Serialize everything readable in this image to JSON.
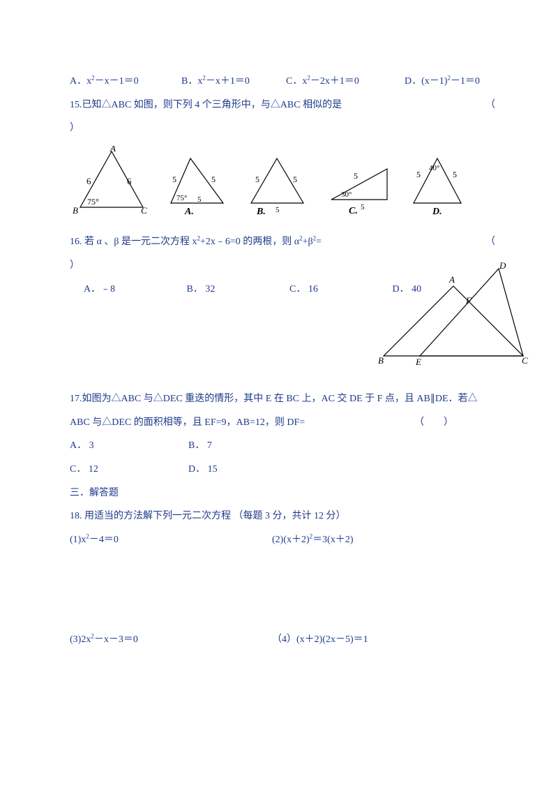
{
  "q14": {
    "optA": "A．x²－x－1＝0",
    "optB": "B．x²－x＋1＝0",
    "optC": "C．x²－2x＋1＝0",
    "optD": "D．(x－1)²－1＝0"
  },
  "q15": {
    "text": "15.已知△ABC 如图，则下列 4 个三角形中，与△ABC 相似的是",
    "paren_open": "（",
    "paren_close": "）",
    "ref": {
      "A": "A",
      "B": "B",
      "C": "C",
      "side_left": "6",
      "side_right": "6",
      "angle": "75°"
    },
    "opts": {
      "A": {
        "label": "A.",
        "s1": "5",
        "s2": "5",
        "s3": "5",
        "angle": "75°"
      },
      "B": {
        "label": "B.",
        "s1": "5",
        "s2": "5",
        "s3": "5"
      },
      "C": {
        "label": "C.",
        "s1": "5",
        "s2": "5",
        "angle": "30°"
      },
      "D": {
        "label": "D.",
        "s1": "5",
        "s2": "5",
        "angle": "40°"
      }
    }
  },
  "q16": {
    "text": "16. 若 α 、β 是一元二次方程 x²+2x﹣6=0 的两根，则 α²+β²=",
    "paren_open": "（",
    "paren_close": "）",
    "optA": "A．﹣8",
    "optB": "B． 32",
    "optC": "C． 16",
    "optD": "D． 40"
  },
  "q17": {
    "line1": "17.如图为△ABC 与△DEC 重迭的情形，其中 E 在 BC 上，AC 交 DE 于 F 点，且 AB∥DE．若△",
    "line2": "ABC 与△DEC 的面积相等，且 EF=9，AB=12，则 DF=",
    "paren": "（　　）",
    "optA": "A． 3",
    "optB": "B． 7",
    "optC": "C． 12",
    "optD": "D． 15",
    "fig": {
      "A": "A",
      "B": "B",
      "C": "C",
      "D": "D",
      "E": "E",
      "F": "F"
    }
  },
  "sec3": "三．解答题",
  "q18": {
    "text": "18. 用适当的方法解下列一元二次方程 （每题 3 分，共计 12 分）",
    "eq1": "(1)x²－4＝0",
    "eq2": "(2)(x＋2)²＝3(x＋2)",
    "eq3": "(3)2x²－x－3＝0",
    "eq4": "（4）(x＋2)(2x－5)＝1"
  },
  "colors": {
    "text": "#1e3a8a",
    "stroke": "#000000",
    "bg": "#ffffff"
  }
}
